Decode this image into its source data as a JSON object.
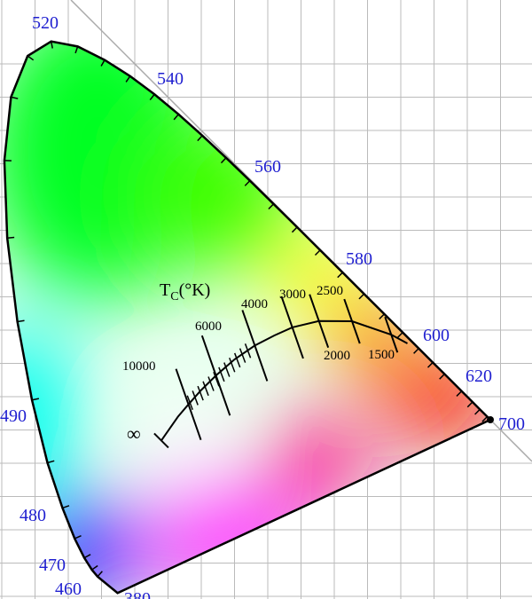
{
  "wavelength_labels": [
    "520",
    "540",
    "560",
    "580",
    "600",
    "620",
    "700",
    "490",
    "480",
    "470",
    "460",
    "380"
  ],
  "locus": {
    "title_main": "T",
    "title_sub": "C",
    "title_unit": "(°K)",
    "infinity": "∞",
    "temperatures": [
      "10000",
      "6000",
      "4000",
      "3000",
      "2500",
      "2000",
      "1500"
    ]
  }
}
